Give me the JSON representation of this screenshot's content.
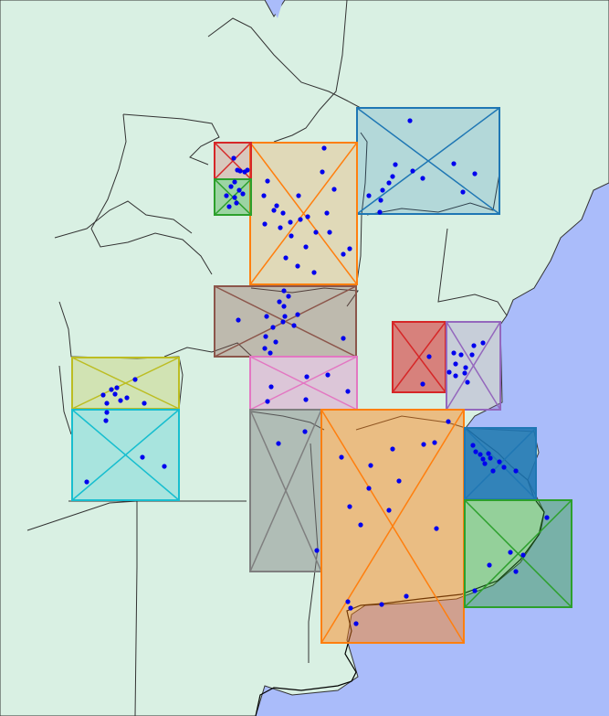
{
  "map": {
    "colors": {
      "ocean": "#aabcfa",
      "land": "#d9f0e3",
      "border": "#333333",
      "coast": "#000000",
      "points": "#0000ee"
    },
    "regions": [
      {
        "id": "a",
        "color": "#1f77b4",
        "fill_opacity": 0.2
      },
      {
        "id": "b",
        "color": "#ff7f0e",
        "fill_opacity": 0.2
      },
      {
        "id": "c",
        "color": "#d62728",
        "fill_opacity": 0.2
      },
      {
        "id": "d",
        "color": "#2ca02c",
        "fill_opacity": 0.35
      },
      {
        "id": "e",
        "color": "#8c564b",
        "fill_opacity": 0.35
      },
      {
        "id": "f",
        "color": "#e377c2",
        "fill_opacity": 0.35
      },
      {
        "id": "g",
        "color": "#d62728",
        "fill_opacity": 0.55
      },
      {
        "id": "h",
        "color": "#9467bd",
        "fill_opacity": 0.25
      },
      {
        "id": "i",
        "color": "#bcbd22",
        "fill_opacity": 0.25
      },
      {
        "id": "j",
        "color": "#17becf",
        "fill_opacity": 0.25
      },
      {
        "id": "k",
        "color": "#7f7f7f",
        "fill_opacity": 0.45
      },
      {
        "id": "l",
        "color": "#ff7f0e",
        "fill_opacity": 0.45
      },
      {
        "id": "m",
        "color": "#1f77b4",
        "fill_opacity": 0.9
      },
      {
        "id": "n",
        "color": "#2ca02c",
        "fill_opacity": 0.4
      }
    ]
  }
}
